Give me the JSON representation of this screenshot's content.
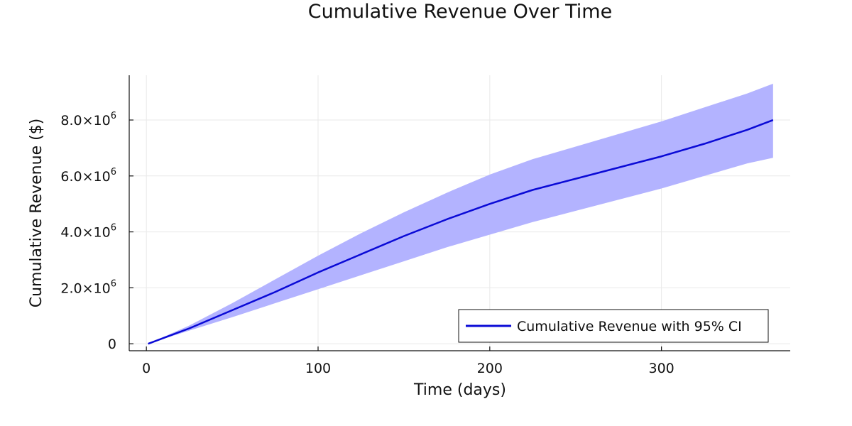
{
  "chart_data": {
    "type": "line",
    "title": "Cumulative Revenue Over Time",
    "xlabel": "Time (days)",
    "ylabel": "Cumulative Revenue ($)",
    "xlim": [
      -10,
      375
    ],
    "ylim": [
      -250000,
      9600000
    ],
    "x_ticks": [
      {
        "value": 0,
        "label": "0"
      },
      {
        "value": 100,
        "label": "100"
      },
      {
        "value": 200,
        "label": "200"
      },
      {
        "value": 300,
        "label": "300"
      }
    ],
    "y_ticks": [
      {
        "value": 0,
        "mantissa": "0",
        "exponent": ""
      },
      {
        "value": 2000000,
        "mantissa": "2.0×10",
        "exponent": "6"
      },
      {
        "value": 4000000,
        "mantissa": "4.0×10",
        "exponent": "6"
      },
      {
        "value": 6000000,
        "mantissa": "6.0×10",
        "exponent": "6"
      },
      {
        "value": 8000000,
        "mantissa": "8.0×10",
        "exponent": "6"
      }
    ],
    "grid": true,
    "legend_position": "bottom-right",
    "colors": {
      "line": "#0a0ad6",
      "band": "#b3b3ff"
    },
    "series": [
      {
        "name": "Cumulative Revenue with 95% CI",
        "x": [
          1,
          25,
          50,
          75,
          100,
          125,
          150,
          175,
          200,
          225,
          250,
          275,
          300,
          325,
          350,
          365
        ],
        "y": [
          0,
          550000,
          1200000,
          1850000,
          2550000,
          3200000,
          3850000,
          4450000,
          5000000,
          5500000,
          5900000,
          6300000,
          6700000,
          7150000,
          7650000,
          8000000
        ],
        "lower": [
          0,
          470000,
          950000,
          1450000,
          1950000,
          2450000,
          2950000,
          3450000,
          3900000,
          4350000,
          4750000,
          5150000,
          5550000,
          6000000,
          6450000,
          6650000
        ],
        "upper": [
          0,
          650000,
          1450000,
          2300000,
          3150000,
          3950000,
          4700000,
          5400000,
          6050000,
          6600000,
          7050000,
          7500000,
          7950000,
          8450000,
          8950000,
          9300000
        ]
      }
    ]
  }
}
